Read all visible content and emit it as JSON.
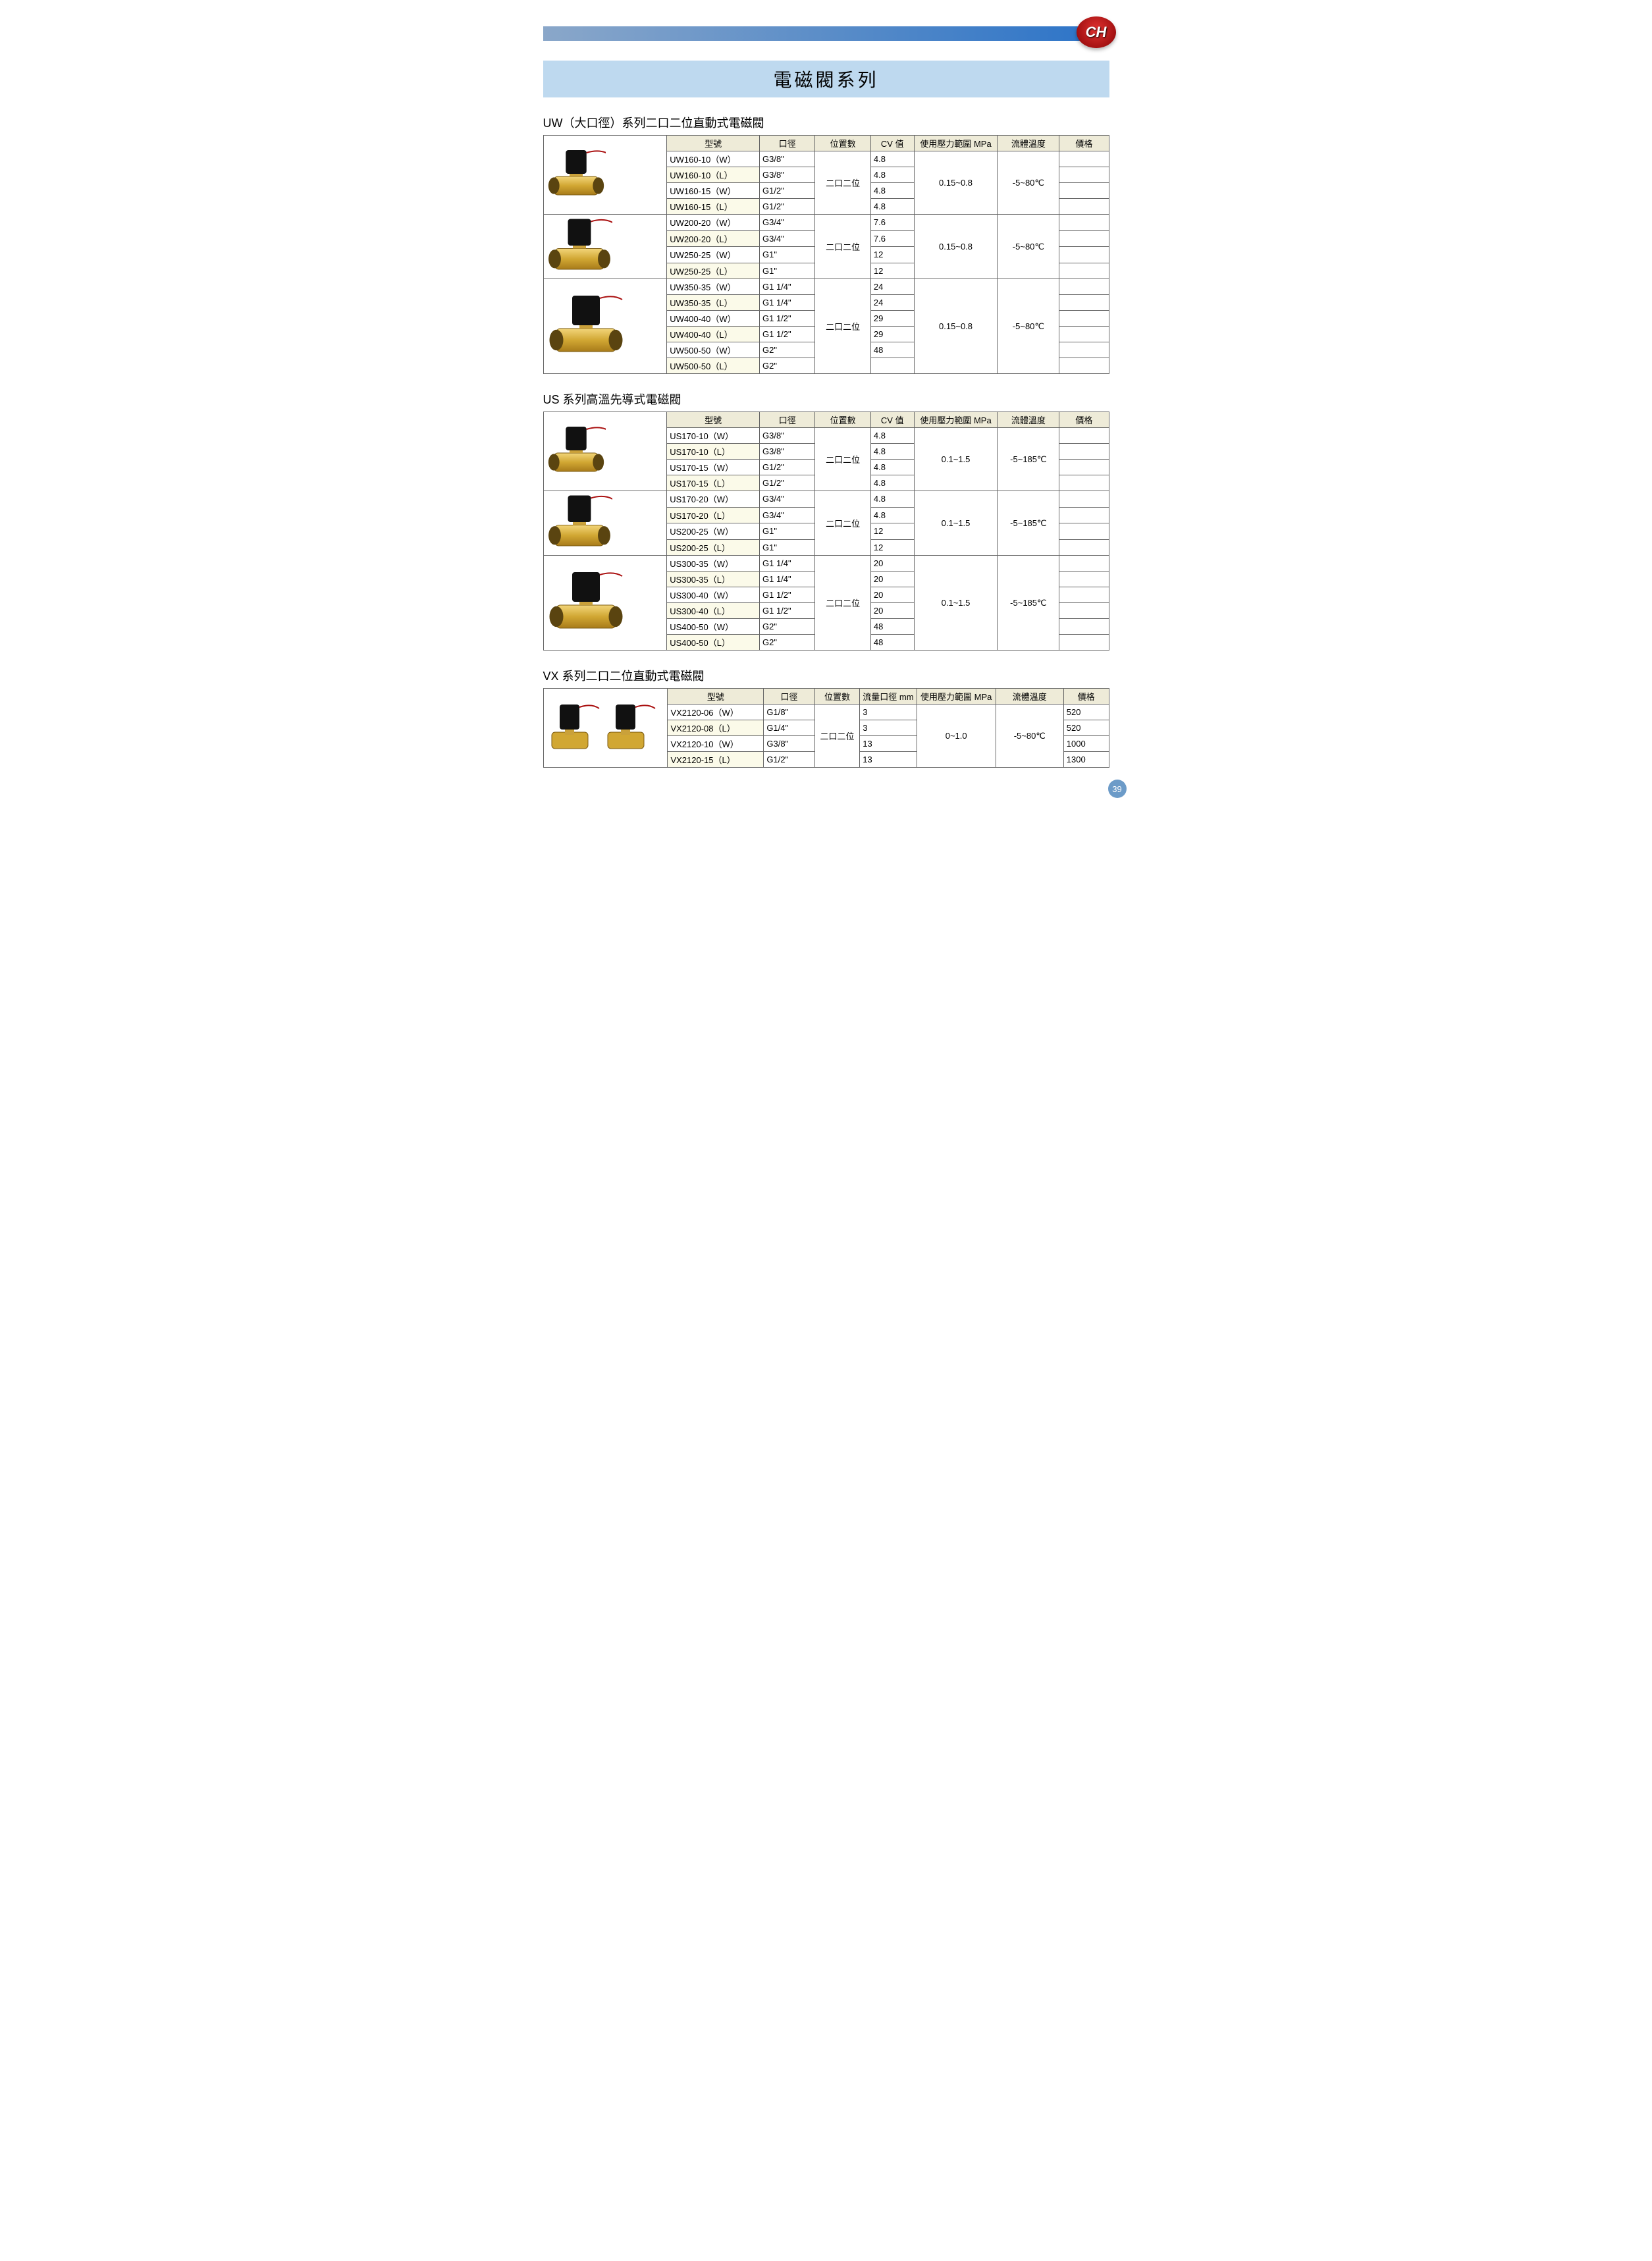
{
  "brand": "CH",
  "page_title": "電磁閥系列",
  "page_number": "39",
  "brand_colors": {
    "badge_gradient": [
      "#e13230",
      "#a31112",
      "#5a0302"
    ],
    "topbar_gradient": [
      "#8aa7c9",
      "#2b73c8"
    ],
    "title_bg": "#bed9ef",
    "header_bg": "#eeebd8"
  },
  "sections": [
    {
      "title": "UW（大口徑）系列二口二位直動式電磁閥",
      "img_col_width": "20%",
      "headers": [
        "型號",
        "口徑",
        "位置數",
        "CV 值",
        "使用壓力範圍 MPa",
        "流體溫度",
        "價格"
      ],
      "col_widths": [
        "15%",
        "9%",
        "9%",
        "7%",
        "12%",
        "10%",
        "8%"
      ],
      "blocks": [
        {
          "img_desc": "valve-small",
          "rows": [
            {
              "model": "UW160-10（W）",
              "port": "G3/8\"",
              "cv": "4.8"
            },
            {
              "model": "UW160-10（L）",
              "port": "G3/8\"",
              "cv": "4.8"
            },
            {
              "model": "UW160-15（W）",
              "port": "G1/2\"",
              "cv": "4.8"
            },
            {
              "model": "UW160-15（L）",
              "port": "G1/2\"",
              "cv": "4.8"
            }
          ],
          "position": "二口二位",
          "pressure": "0.15~0.8",
          "temp": "-5~80℃"
        },
        {
          "img_desc": "valve-medium",
          "rows": [
            {
              "model": "UW200-20（W）",
              "port": "G3/4\"",
              "cv": "7.6"
            },
            {
              "model": "UW200-20（L）",
              "port": "G3/4\"",
              "cv": "7.6"
            },
            {
              "model": "UW250-25（W）",
              "port": "G1\"",
              "cv": "12"
            },
            {
              "model": "UW250-25（L）",
              "port": "G1\"",
              "cv": "12"
            }
          ],
          "position": "二口二位",
          "pressure": "0.15~0.8",
          "temp": "-5~80℃"
        },
        {
          "img_desc": "valve-large",
          "rows": [
            {
              "model": "UW350-35（W）",
              "port": "G1 1/4\"",
              "cv": "24"
            },
            {
              "model": "UW350-35（L）",
              "port": "G1 1/4\"",
              "cv": "24"
            },
            {
              "model": "UW400-40（W）",
              "port": "G1 1/2\"",
              "cv": "29"
            },
            {
              "model": "UW400-40（L）",
              "port": "G1 1/2\"",
              "cv": "29"
            },
            {
              "model": "UW500-50（W）",
              "port": "G2\"",
              "cv": "48"
            },
            {
              "model": "UW500-50（L）",
              "port": "G2\"",
              "cv": ""
            }
          ],
          "position": "二口二位",
          "pressure": "0.15~0.8",
          "temp": "-5~80℃"
        }
      ]
    },
    {
      "title": "US 系列高溫先導式電磁閥",
      "img_col_width": "20%",
      "headers": [
        "型號",
        "口徑",
        "位置數",
        "CV 值",
        "使用壓力範圍 MPa",
        "流體溫度",
        "價格"
      ],
      "col_widths": [
        "15%",
        "9%",
        "9%",
        "7%",
        "12%",
        "10%",
        "8%"
      ],
      "blocks": [
        {
          "img_desc": "valve-small",
          "rows": [
            {
              "model": "US170-10（W）",
              "port": "G3/8\"",
              "cv": "4.8"
            },
            {
              "model": "US170-10（L）",
              "port": "G3/8\"",
              "cv": "4.8"
            },
            {
              "model": "US170-15（W）",
              "port": "G1/2\"",
              "cv": "4.8"
            },
            {
              "model": "US170-15（L）",
              "port": "G1/2\"",
              "cv": "4.8"
            }
          ],
          "position": "二口二位",
          "pressure": "0.1~1.5",
          "temp": "-5~185℃"
        },
        {
          "img_desc": "valve-medium",
          "rows": [
            {
              "model": "US170-20（W）",
              "port": "G3/4\"",
              "cv": "4.8"
            },
            {
              "model": "US170-20（L）",
              "port": "G3/4\"",
              "cv": "4.8"
            },
            {
              "model": "US200-25（W）",
              "port": "G1\"",
              "cv": "12"
            },
            {
              "model": "US200-25（L）",
              "port": "G1\"",
              "cv": "12"
            }
          ],
          "position": "二口二位",
          "pressure": "0.1~1.5",
          "temp": "-5~185℃"
        },
        {
          "img_desc": "valve-large",
          "rows": [
            {
              "model": "US300-35（W）",
              "port": "G1 1/4\"",
              "cv": "20"
            },
            {
              "model": "US300-35（L）",
              "port": "G1 1/4\"",
              "cv": "20"
            },
            {
              "model": "US300-40（W）",
              "port": "G1 1/2\"",
              "cv": "20"
            },
            {
              "model": "US300-40（L）",
              "port": "G1 1/2\"",
              "cv": "20"
            },
            {
              "model": "US400-50（W）",
              "port": "G2\"",
              "cv": "48"
            },
            {
              "model": "US400-50（L）",
              "port": "G2\"",
              "cv": "48"
            }
          ],
          "position": "二口二位",
          "pressure": "0.1~1.5",
          "temp": "-5~185℃"
        }
      ]
    },
    {
      "title": "VX 系列二口二位直動式電磁閥",
      "img_col_width": "22%",
      "headers": [
        "型號",
        "口徑",
        "位置數",
        "流量口徑 mm",
        "使用壓力範圍 MPa",
        "流體溫度",
        "價格"
      ],
      "col_widths": [
        "17%",
        "9%",
        "8%",
        "10%",
        "14%",
        "12%",
        "8%"
      ],
      "blocks": [
        {
          "img_desc": "valve-vx-pair",
          "rows": [
            {
              "model": "VX2120-06（W）",
              "port": "G1/8\"",
              "cv": "3",
              "price": "520"
            },
            {
              "model": "VX2120-08（L）",
              "port": "G1/4\"",
              "cv": "3",
              "price": "520"
            },
            {
              "model": "VX2120-10（W）",
              "port": "G3/8\"",
              "cv": "13",
              "price": "1000"
            },
            {
              "model": "VX2120-15（L）",
              "port": "G1/2\"",
              "cv": "13",
              "price": "1300"
            }
          ],
          "position": "二口二位",
          "pressure": "0~1.0",
          "temp": "-5~80℃"
        }
      ]
    }
  ]
}
